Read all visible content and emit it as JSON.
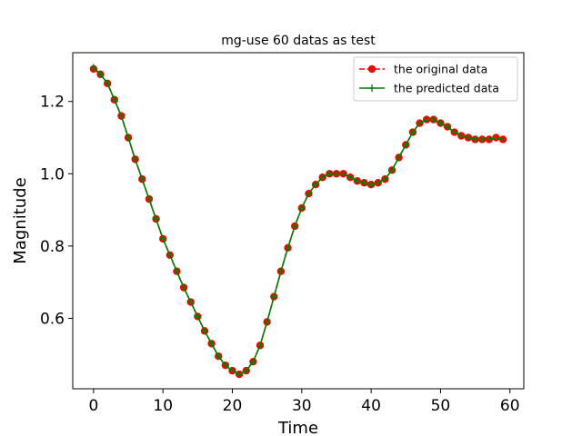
{
  "chart_data": {
    "type": "line",
    "title": "mg-use 60 datas as test",
    "xlabel": "Time",
    "ylabel": "Magnitude",
    "xlim": [
      -3,
      62
    ],
    "ylim": [
      0.405,
      1.335
    ],
    "xticks": [
      0,
      10,
      20,
      30,
      40,
      50,
      60
    ],
    "yticks": [
      0.6,
      0.8,
      1.0,
      1.2
    ],
    "xtick_labels": [
      "0",
      "10",
      "20",
      "30",
      "40",
      "50",
      "60"
    ],
    "ytick_labels": [
      "0.6",
      "0.8",
      "1.0",
      "1.2"
    ],
    "grid": false,
    "legend": "top-right",
    "x": [
      0,
      1,
      2,
      3,
      4,
      5,
      6,
      7,
      8,
      9,
      10,
      11,
      12,
      13,
      14,
      15,
      16,
      17,
      18,
      19,
      20,
      21,
      22,
      23,
      24,
      25,
      26,
      27,
      28,
      29,
      30,
      31,
      32,
      33,
      34,
      35,
      36,
      37,
      38,
      39,
      40,
      41,
      42,
      43,
      44,
      45,
      46,
      47,
      48,
      49,
      50,
      51,
      52,
      53,
      54,
      55,
      56,
      57,
      58,
      59
    ],
    "series": [
      {
        "name": "the original data",
        "color": "#ff0000",
        "style": "dashed line with circle markers",
        "values": [
          1.29,
          1.275,
          1.25,
          1.205,
          1.16,
          1.1,
          1.04,
          0.985,
          0.93,
          0.875,
          0.82,
          0.775,
          0.73,
          0.685,
          0.645,
          0.605,
          0.565,
          0.53,
          0.495,
          0.47,
          0.455,
          0.445,
          0.455,
          0.48,
          0.525,
          0.59,
          0.66,
          0.73,
          0.795,
          0.855,
          0.905,
          0.945,
          0.97,
          0.99,
          1.0,
          1.0,
          1.0,
          0.99,
          0.98,
          0.975,
          0.97,
          0.975,
          0.985,
          1.01,
          1.045,
          1.08,
          1.115,
          1.14,
          1.15,
          1.15,
          1.14,
          1.13,
          1.115,
          1.105,
          1.1,
          1.095,
          1.095,
          1.095,
          1.1,
          1.095
        ]
      },
      {
        "name": "the predicted data",
        "color": "#008000",
        "style": "solid line with plus markers",
        "values": [
          1.295,
          1.275,
          1.25,
          1.205,
          1.16,
          1.1,
          1.04,
          0.985,
          0.93,
          0.875,
          0.82,
          0.775,
          0.73,
          0.685,
          0.645,
          0.605,
          0.565,
          0.53,
          0.495,
          0.47,
          0.455,
          0.445,
          0.455,
          0.48,
          0.525,
          0.59,
          0.66,
          0.73,
          0.795,
          0.855,
          0.905,
          0.945,
          0.97,
          0.99,
          1.0,
          1.0,
          1.0,
          0.99,
          0.98,
          0.975,
          0.97,
          0.975,
          0.985,
          1.01,
          1.045,
          1.08,
          1.115,
          1.14,
          1.15,
          1.15,
          1.14,
          1.13,
          1.115,
          1.105,
          1.1,
          1.095,
          1.095,
          1.095,
          1.1,
          1.095
        ]
      }
    ]
  }
}
